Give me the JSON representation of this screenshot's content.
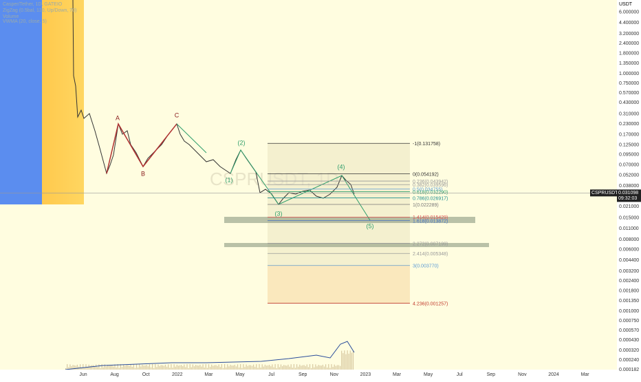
{
  "header": {
    "symbol": "Casper/Tether, 1D, GATEIO",
    "indicator": "ZigZag (0.5bal, 130, Up/Down, 70)",
    "volume": "Volume",
    "vwma": "VWMA (20, close, 5)"
  },
  "price_axis": {
    "unit": "USDT",
    "ticks": [
      {
        "value": 6,
        "label": "6.000000"
      },
      {
        "value": 4.4,
        "label": "4.400000"
      },
      {
        "value": 3.2,
        "label": "3.200000"
      },
      {
        "value": 2.4,
        "label": "2.400000"
      },
      {
        "value": 1.8,
        "label": "1.800000"
      },
      {
        "value": 1.35,
        "label": "1.350000"
      },
      {
        "value": 1,
        "label": "1.000000"
      },
      {
        "value": 0.75,
        "label": "0.750000"
      },
      {
        "value": 0.57,
        "label": "0.570000"
      },
      {
        "value": 0.43,
        "label": "0.430000"
      },
      {
        "value": 0.31,
        "label": "0.310000"
      },
      {
        "value": 0.23,
        "label": "0.230000"
      },
      {
        "value": 0.17,
        "label": "0.170000"
      },
      {
        "value": 0.125,
        "label": "0.125000"
      },
      {
        "value": 0.095,
        "label": "0.095000"
      },
      {
        "value": 0.07,
        "label": "0.070000"
      },
      {
        "value": 0.052,
        "label": "0.052000"
      },
      {
        "value": 0.038,
        "label": "0.038000"
      },
      {
        "value": 0.021,
        "label": "0.021000"
      },
      {
        "value": 0.015,
        "label": "0.015000"
      },
      {
        "value": 0.011,
        "label": "0.011000"
      },
      {
        "value": 0.008,
        "label": "0.008000"
      },
      {
        "value": 0.006,
        "label": "0.006000"
      },
      {
        "value": 0.0044,
        "label": "0.004400"
      },
      {
        "value": 0.0032,
        "label": "0.003200"
      },
      {
        "value": 0.0024,
        "label": "0.002400"
      },
      {
        "value": 0.0018,
        "label": "0.001800"
      },
      {
        "value": 0.00135,
        "label": "0.001350"
      },
      {
        "value": 0.001,
        "label": "0.001000"
      },
      {
        "value": 0.00075,
        "label": "0.000750"
      },
      {
        "value": 0.00057,
        "label": "0.000570"
      },
      {
        "value": 0.00043,
        "label": "0.000430"
      },
      {
        "value": 0.00032,
        "label": "0.000320"
      },
      {
        "value": 0.00024,
        "label": "0.000240"
      },
      {
        "value": 0.000182,
        "label": "0.000182"
      }
    ]
  },
  "time_axis": [
    "Jun",
    "Aug",
    "Oct",
    "2022",
    "Mar",
    "May",
    "Jul",
    "Sep",
    "Nov",
    "2023",
    "Mar",
    "May",
    "Jul",
    "Sep",
    "Nov",
    "2024",
    "Mar"
  ],
  "fib_levels": [
    {
      "value": 0.131758,
      "label": "-1(0.131758)",
      "color": "#333333"
    },
    {
      "value": 0.054192,
      "label": "0(0.054192)",
      "color": "#333333"
    },
    {
      "value": 0.043942,
      "label": "0.236(0.043942)",
      "color": "#999999"
    },
    {
      "value": 0.039596,
      "label": "0.382(0.039596)",
      "color": "#999999"
    },
    {
      "value": 0.034755,
      "label": "0.5(0.034755)",
      "color": "#5b9bd5"
    },
    {
      "value": 0.03229,
      "label": "0.618(0.032290)",
      "color": "#2e9e6b"
    },
    {
      "value": 0.026917,
      "label": "0.786(0.026917)",
      "color": "#1f8f8f"
    },
    {
      "value": 0.022289,
      "label": "1(0.022289)",
      "color": "#777777"
    },
    {
      "value": 0.015429,
      "label": "1.414(0.015429)",
      "color": "#e05050"
    },
    {
      "value": 0.013872,
      "label": "1.618(0.013872)",
      "color": "#4472c4"
    },
    {
      "value": 0.007199,
      "label": "2.272(0.007199)",
      "color": "#999999"
    },
    {
      "value": 0.005348,
      "label": "2.414(0.005348)",
      "color": "#999999"
    },
    {
      "value": 0.00377,
      "label": "3(0.003770)",
      "color": "#5b9bd5"
    },
    {
      "value": 0.001257,
      "label": "4.236(0.001257)",
      "color": "#c0392b"
    }
  ],
  "waves": [
    "A",
    "B",
    "C",
    "(1)",
    "(2)",
    "(3)",
    "(4)",
    "(5)"
  ],
  "price_tag": {
    "symbol": "CSPRUSDT",
    "value": 0.031098,
    "label": "0.031098",
    "countdown": "09:32:03"
  }
}
